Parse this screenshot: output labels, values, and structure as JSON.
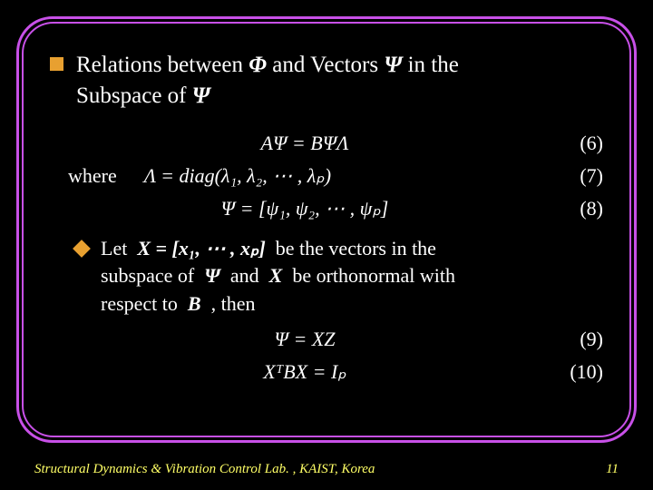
{
  "heading": {
    "part1": "Relations between",
    "part2": "and Vectors",
    "part3": "in the",
    "part4": "Subspace of"
  },
  "equations": {
    "eq6": {
      "body": "AΨ = BΨΛ",
      "num": "(6)"
    },
    "eq7": {
      "where": "where",
      "body": "Λ = diag(λ₁, λ₂, ⋯ , λₚ)",
      "num": "(7)"
    },
    "eq8": {
      "body": "Ψ = [ψ₁, ψ₂, ⋯ , ψₚ]",
      "num": "(8)"
    },
    "eq9": {
      "body": "Ψ = XZ",
      "num": "(9)"
    },
    "eq10": {
      "body": "XᵀBX = Iₚ",
      "num": "(10)"
    }
  },
  "sub": {
    "let": "Let",
    "xeq": "X = [x₁, ⋯ , xₚ]",
    "part1": "be the vectors  in the",
    "part2": "subspace of",
    "part3": "and",
    "part4": "be orthonormal with",
    "part5": "respect to",
    "part6": ", then"
  },
  "footer": {
    "lab": "Structural Dynamics & Vibration Control Lab. , KAIST, Korea",
    "page": "11"
  },
  "symbols": {
    "phi": "Φ",
    "psi": "Ψ",
    "X": "X",
    "B": "B"
  }
}
